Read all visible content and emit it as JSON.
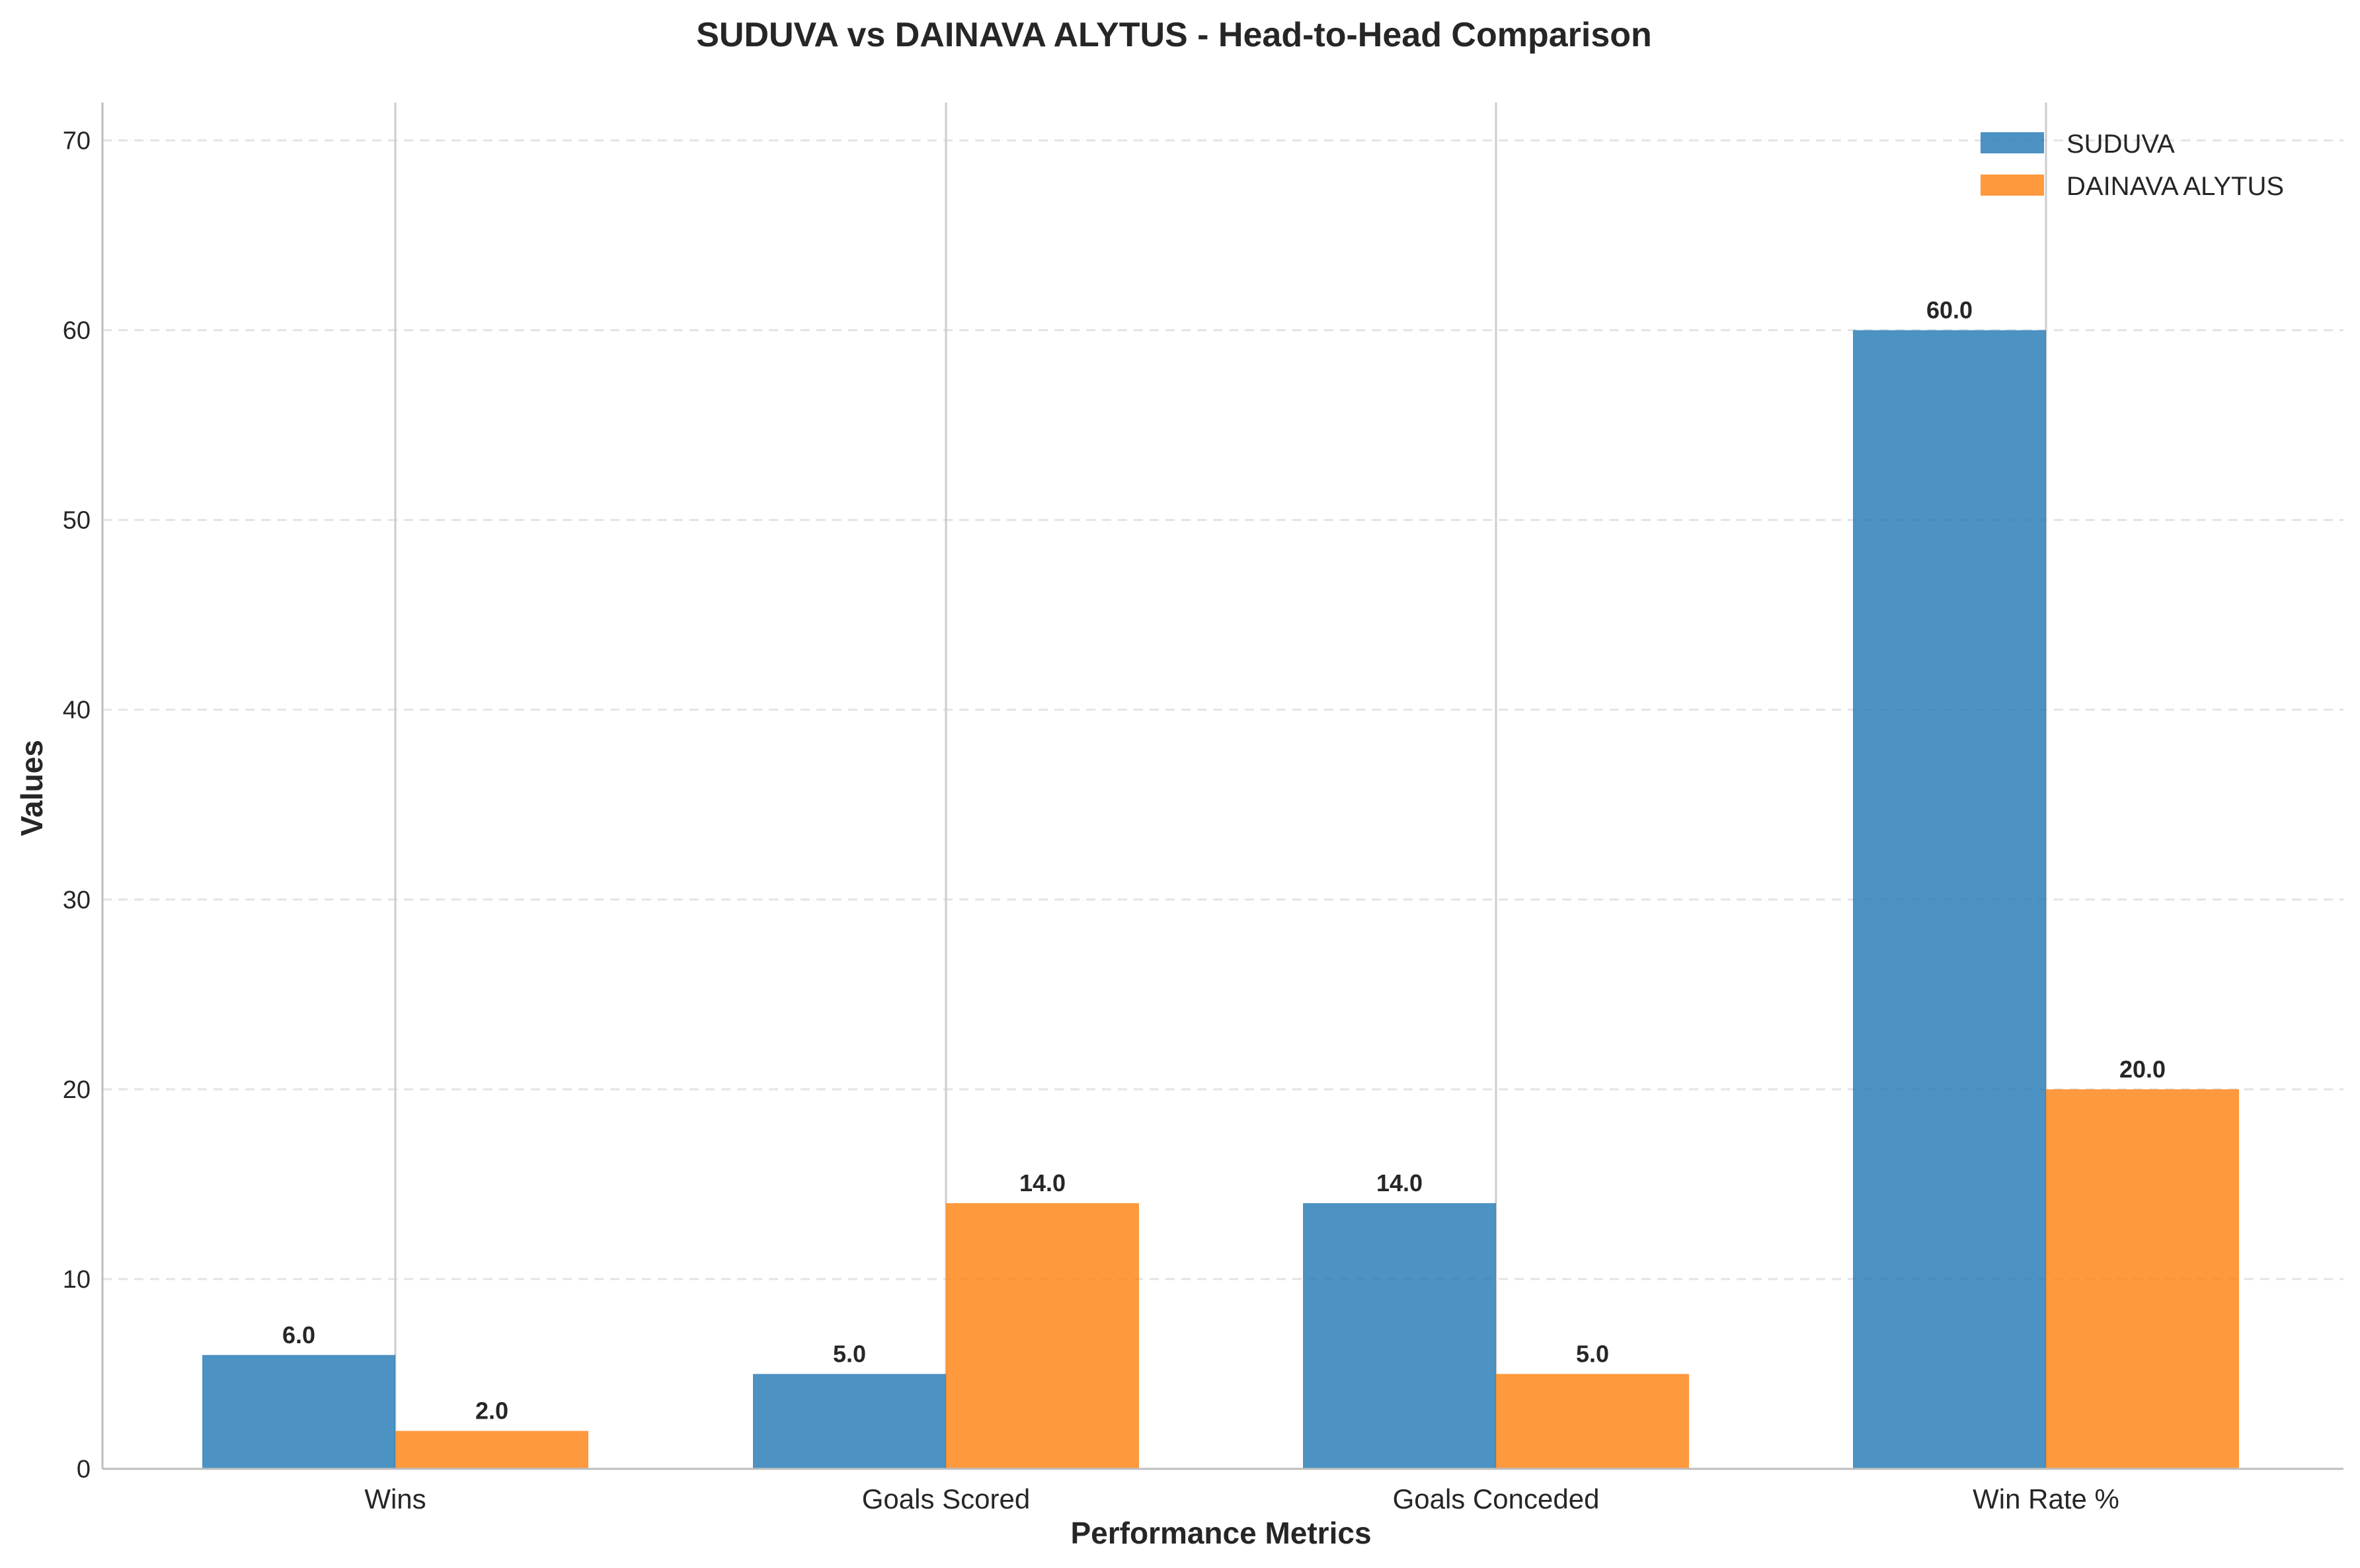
{
  "chart_data": {
    "type": "bar",
    "title": "SUDUVA vs DAINAVA ALYTUS - Head-to-Head Comparison",
    "xlabel": "Performance Metrics",
    "ylabel": "Values",
    "categories": [
      "Wins",
      "Goals Scored",
      "Goals Conceded",
      "Win Rate %"
    ],
    "series": [
      {
        "name": "SUDUVA",
        "values": [
          6.0,
          5.0,
          14.0,
          60.0
        ],
        "color": "#1f77b4"
      },
      {
        "name": "DAINAVA ALYTUS",
        "values": [
          2.0,
          14.0,
          5.0,
          20.0
        ],
        "color": "#ff7f0e"
      }
    ],
    "data_labels": [
      [
        "6.0",
        "5.0",
        "14.0",
        "60.0"
      ],
      [
        "2.0",
        "14.0",
        "5.0",
        "20.0"
      ]
    ],
    "ylim": [
      0,
      72
    ],
    "yticks": [
      0,
      10,
      20,
      30,
      40,
      50,
      60,
      70
    ],
    "ytick_labels": [
      "0",
      "10",
      "20",
      "30",
      "40",
      "50",
      "60",
      "70"
    ],
    "grid": "y-axis dashed",
    "legend_position": "top-right"
  }
}
